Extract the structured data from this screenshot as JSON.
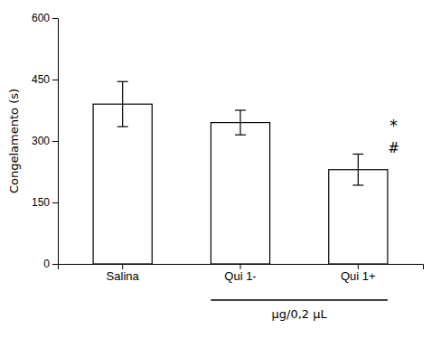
{
  "chart_data": {
    "type": "bar",
    "categories": [
      "Salina",
      "Qui 1-",
      "Qui 1+"
    ],
    "values": [
      390,
      345,
      230
    ],
    "errors": [
      55,
      30,
      38
    ],
    "color": "#ffffff",
    "ylabel": "Congelamento (s)",
    "ylim": [
      0,
      600
    ],
    "yticks": [
      0,
      150,
      300,
      450,
      600
    ],
    "annotations": [
      "*",
      "#",
      "µg/0,2 µL"
    ],
    "grid": false
  }
}
